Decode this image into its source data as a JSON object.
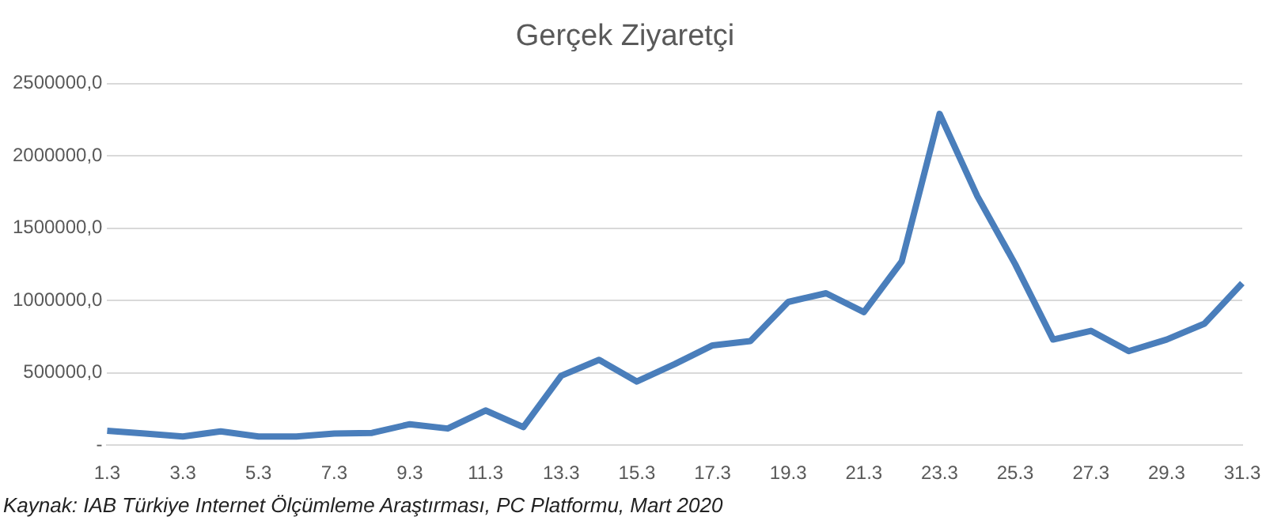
{
  "chart_data": {
    "type": "line",
    "title": "Gerçek Ziyaretçi",
    "categories": [
      "1.3",
      null,
      "3.3",
      null,
      "5.3",
      null,
      "7.3",
      null,
      "9.3",
      null,
      "11.3",
      null,
      "13.3",
      null,
      "15.3",
      null,
      "17.3",
      null,
      "19.3",
      null,
      "21.3",
      null,
      "23.3",
      null,
      "25.3",
      null,
      "27.3",
      null,
      "29.3",
      null,
      "31.3"
    ],
    "series": [
      {
        "color": "#4a7ebb",
        "values": [
          100000,
          80000,
          60000,
          95000,
          60000,
          60000,
          80000,
          85000,
          145000,
          115000,
          240000,
          125000,
          480000,
          590000,
          440000,
          560000,
          690000,
          720000,
          990000,
          1050000,
          920000,
          1270000,
          2290000,
          1720000,
          1250000,
          730000,
          790000,
          650000,
          730000,
          840000,
          1120000
        ]
      }
    ],
    "ylim": [
      0,
      2500000
    ],
    "yticks": [
      {
        "value": 0,
        "label": "-"
      },
      {
        "value": 500000,
        "label": "500000,0"
      },
      {
        "value": 1000000,
        "label": "1000000,0"
      },
      {
        "value": 1500000,
        "label": "1500000,0"
      },
      {
        "value": 2000000,
        "label": "2000000,0"
      },
      {
        "value": 2500000,
        "label": "2500000,0"
      }
    ],
    "grid": "y",
    "legend": false,
    "marker": "none",
    "line_style": "solid",
    "annotations": [
      "Kaynak: IAB Türkiye Internet Ölçümleme Araştırması, PC Platformu, Mart 2020"
    ]
  }
}
